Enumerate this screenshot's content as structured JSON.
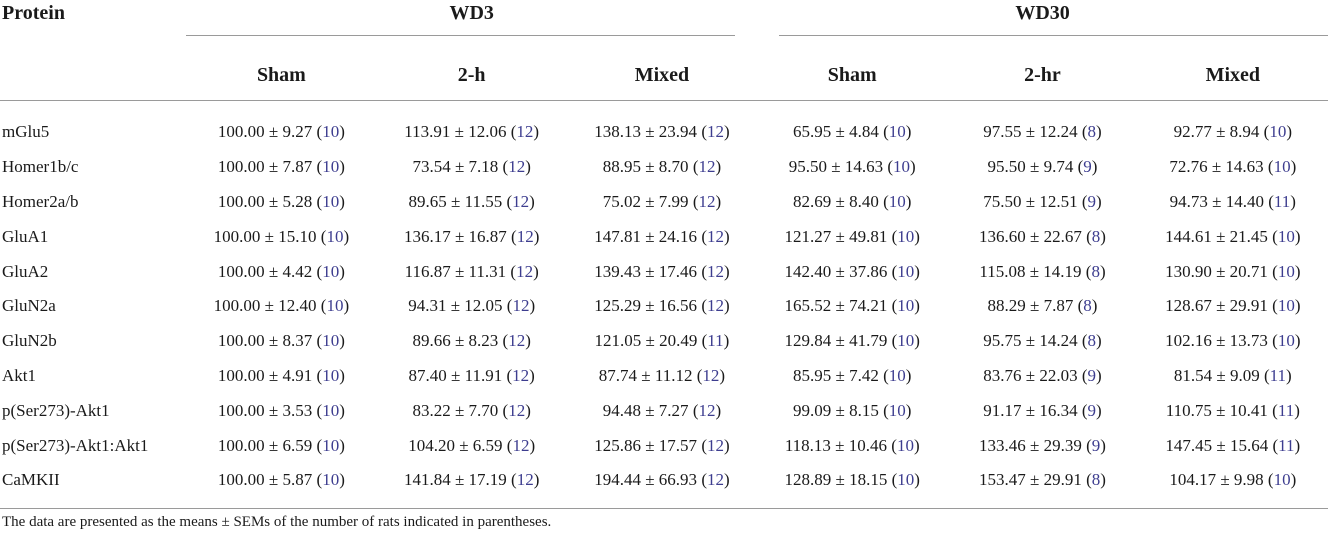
{
  "table": {
    "protein_header": "Protein",
    "groups": [
      "WD3",
      "WD30"
    ],
    "subheaders": [
      "Sham",
      "2-h",
      "Mixed",
      "Sham",
      "2-hr",
      "Mixed"
    ],
    "rows": [
      {
        "protein": "mGlu5",
        "cells": [
          {
            "v": "100.00 ± 9.27",
            "n": "10"
          },
          {
            "v": "113.91 ± 12.06",
            "n": "12"
          },
          {
            "v": "138.13 ± 23.94",
            "n": "12"
          },
          {
            "v": "65.95 ± 4.84",
            "n": "10"
          },
          {
            "v": "97.55 ± 12.24",
            "n": "8"
          },
          {
            "v": "92.77 ± 8.94",
            "n": "10"
          }
        ]
      },
      {
        "protein": "Homer1b/c",
        "cells": [
          {
            "v": "100.00 ± 7.87",
            "n": "10"
          },
          {
            "v": "73.54 ± 7.18",
            "n": "12"
          },
          {
            "v": "88.95 ± 8.70",
            "n": "12"
          },
          {
            "v": "95.50 ± 14.63",
            "n": "10"
          },
          {
            "v": "95.50 ± 9.74",
            "n": "9"
          },
          {
            "v": "72.76 ± 14.63",
            "n": "10"
          }
        ]
      },
      {
        "protein": "Homer2a/b",
        "cells": [
          {
            "v": "100.00 ± 5.28",
            "n": "10"
          },
          {
            "v": "89.65 ± 11.55",
            "n": "12"
          },
          {
            "v": "75.02 ± 7.99",
            "n": "12"
          },
          {
            "v": "82.69 ± 8.40",
            "n": "10"
          },
          {
            "v": "75.50 ± 12.51",
            "n": "9"
          },
          {
            "v": "94.73 ± 14.40",
            "n": "11"
          }
        ]
      },
      {
        "protein": "GluA1",
        "cells": [
          {
            "v": "100.00 ± 15.10",
            "n": "10"
          },
          {
            "v": "136.17 ± 16.87",
            "n": "12"
          },
          {
            "v": "147.81 ± 24.16",
            "n": "12"
          },
          {
            "v": "121.27 ± 49.81",
            "n": "10"
          },
          {
            "v": "136.60 ± 22.67",
            "n": "8"
          },
          {
            "v": "144.61 ± 21.45",
            "n": "10"
          }
        ]
      },
      {
        "protein": "GluA2",
        "cells": [
          {
            "v": "100.00 ± 4.42",
            "n": "10"
          },
          {
            "v": "116.87 ± 11.31",
            "n": "12"
          },
          {
            "v": "139.43 ± 17.46",
            "n": "12"
          },
          {
            "v": "142.40 ± 37.86",
            "n": "10"
          },
          {
            "v": "115.08 ± 14.19",
            "n": "8"
          },
          {
            "v": "130.90 ± 20.71",
            "n": "10"
          }
        ]
      },
      {
        "protein": "GluN2a",
        "cells": [
          {
            "v": "100.00 ± 12.40",
            "n": "10"
          },
          {
            "v": "94.31 ± 12.05",
            "n": "12"
          },
          {
            "v": "125.29 ± 16.56",
            "n": "12"
          },
          {
            "v": "165.52 ± 74.21",
            "n": "10"
          },
          {
            "v": "88.29 ± 7.87",
            "n": "8"
          },
          {
            "v": "128.67 ± 29.91",
            "n": "10"
          }
        ]
      },
      {
        "protein": "GluN2b",
        "cells": [
          {
            "v": "100.00 ± 8.37",
            "n": "10"
          },
          {
            "v": "89.66 ± 8.23",
            "n": "12"
          },
          {
            "v": "121.05 ± 20.49",
            "n": "11"
          },
          {
            "v": "129.84 ± 41.79",
            "n": "10"
          },
          {
            "v": "95.75 ± 14.24",
            "n": "8"
          },
          {
            "v": "102.16 ± 13.73",
            "n": "10"
          }
        ]
      },
      {
        "protein": "Akt1",
        "cells": [
          {
            "v": "100.00 ± 4.91",
            "n": "10"
          },
          {
            "v": "87.40 ± 11.91",
            "n": "12"
          },
          {
            "v": "87.74 ± 11.12",
            "n": "12"
          },
          {
            "v": "85.95 ± 7.42",
            "n": "10"
          },
          {
            "v": "83.76 ± 22.03",
            "n": "9"
          },
          {
            "v": "81.54 ± 9.09",
            "n": "11"
          }
        ]
      },
      {
        "protein": "p(Ser273)-Akt1",
        "cells": [
          {
            "v": "100.00 ± 3.53",
            "n": "10"
          },
          {
            "v": "83.22 ± 7.70",
            "n": "12"
          },
          {
            "v": "94.48 ± 7.27",
            "n": "12"
          },
          {
            "v": "99.09 ± 8.15",
            "n": "10"
          },
          {
            "v": "91.17 ± 16.34",
            "n": "9"
          },
          {
            "v": "110.75 ± 10.41",
            "n": "11"
          }
        ]
      },
      {
        "protein": "p(Ser273)-Akt1:Akt1",
        "cells": [
          {
            "v": "100.00 ± 6.59",
            "n": "10"
          },
          {
            "v": "104.20 ± 6.59",
            "n": "12"
          },
          {
            "v": "125.86 ± 17.57",
            "n": "12"
          },
          {
            "v": "118.13 ± 10.46",
            "n": "10"
          },
          {
            "v": "133.46 ± 29.39",
            "n": "9"
          },
          {
            "v": "147.45 ± 15.64",
            "n": "11"
          }
        ]
      },
      {
        "protein": "CaMKII",
        "cells": [
          {
            "v": "100.00 ± 5.87",
            "n": "10"
          },
          {
            "v": "141.84 ± 17.19",
            "n": "12"
          },
          {
            "v": "194.44 ± 66.93",
            "n": "12"
          },
          {
            "v": "128.89 ± 18.15",
            "n": "10"
          },
          {
            "v": "153.47 ± 29.91",
            "n": "8"
          },
          {
            "v": "104.17 ± 9.98",
            "n": "10"
          }
        ]
      }
    ]
  },
  "footnote": "The data are presented as the means ± SEMs of the number of rats indicated in parentheses.",
  "colors": {
    "text": "#1a1a1a",
    "sample_size": "#3d3d8f",
    "rule": "#9a9a9a"
  }
}
